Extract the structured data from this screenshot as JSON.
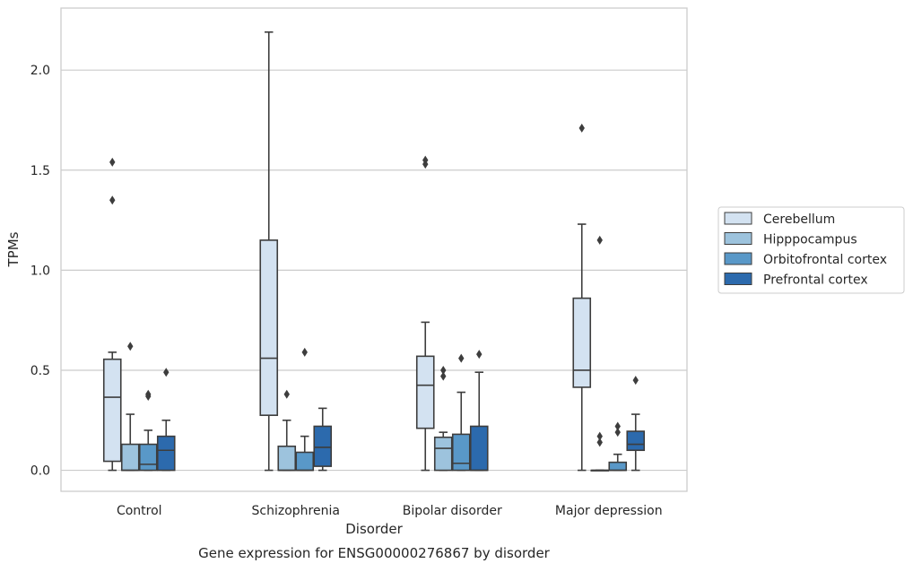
{
  "chart_data": {
    "type": "box",
    "title": "Gene expression for ENSG00000276867 by disorder",
    "xlabel": "Disorder",
    "ylabel": "TPMs",
    "ylim": [
      -0.105,
      2.31
    ],
    "yticks": [
      "0.0",
      "0.5",
      "1.0",
      "1.5",
      "2.0"
    ],
    "ytick_values": [
      0.0,
      0.5,
      1.0,
      1.5,
      2.0
    ],
    "grid": "horizontal",
    "legend_placement": "center-right",
    "categories": [
      "Control",
      "Schizophrenia",
      "Bipolar disorder",
      "Major depression"
    ],
    "series": [
      {
        "name": "Cerebellum",
        "color": "#d3e2f1",
        "boxes": [
          {
            "whisker_low": 0.0,
            "q1": 0.045,
            "median": 0.365,
            "q3": 0.555,
            "whisker_high": 0.59,
            "outliers": [
              1.35,
              1.54
            ]
          },
          {
            "whisker_low": 0.0,
            "q1": 0.275,
            "median": 0.56,
            "q3": 1.15,
            "whisker_high": 2.19,
            "outliers": []
          },
          {
            "whisker_low": 0.0,
            "q1": 0.21,
            "median": 0.425,
            "q3": 0.57,
            "whisker_high": 0.74,
            "outliers": [
              1.53,
              1.55
            ]
          },
          {
            "whisker_low": 0.0,
            "q1": 0.415,
            "median": 0.5,
            "q3": 0.86,
            "whisker_high": 1.23,
            "outliers": [
              1.71
            ]
          }
        ]
      },
      {
        "name": "Hipppocampus",
        "color": "#9dc3dd",
        "boxes": [
          {
            "whisker_low": 0.0,
            "q1": 0.0,
            "median": 0.0,
            "q3": 0.13,
            "whisker_high": 0.28,
            "outliers": [
              0.62
            ]
          },
          {
            "whisker_low": 0.0,
            "q1": 0.0,
            "median": 0.0,
            "q3": 0.12,
            "whisker_high": 0.25,
            "outliers": [
              0.38
            ]
          },
          {
            "whisker_low": 0.0,
            "q1": 0.0,
            "median": 0.11,
            "q3": 0.165,
            "whisker_high": 0.19,
            "outliers": [
              0.47,
              0.5
            ]
          },
          {
            "whisker_low": 0.0,
            "q1": 0.0,
            "median": 0.0,
            "q3": 0.0,
            "whisker_high": 0.0,
            "outliers": [
              0.14,
              0.17,
              1.15
            ]
          }
        ]
      },
      {
        "name": "Orbitofrontal cortex",
        "color": "#5998c8",
        "boxes": [
          {
            "whisker_low": 0.0,
            "q1": 0.0,
            "median": 0.03,
            "q3": 0.13,
            "whisker_high": 0.2,
            "outliers": [
              0.37,
              0.38
            ]
          },
          {
            "whisker_low": 0.0,
            "q1": 0.0,
            "median": 0.0,
            "q3": 0.09,
            "whisker_high": 0.17,
            "outliers": [
              0.59
            ]
          },
          {
            "whisker_low": 0.0,
            "q1": 0.0,
            "median": 0.035,
            "q3": 0.18,
            "whisker_high": 0.39,
            "outliers": [
              0.56
            ]
          },
          {
            "whisker_low": 0.0,
            "q1": 0.0,
            "median": 0.0,
            "q3": 0.04,
            "whisker_high": 0.08,
            "outliers": [
              0.19,
              0.22
            ]
          }
        ]
      },
      {
        "name": "Prefrontal cortex",
        "color": "#2c6aad",
        "boxes": [
          {
            "whisker_low": 0.0,
            "q1": 0.0,
            "median": 0.1,
            "q3": 0.17,
            "whisker_high": 0.25,
            "outliers": [
              0.49
            ]
          },
          {
            "whisker_low": 0.0,
            "q1": 0.02,
            "median": 0.115,
            "q3": 0.22,
            "whisker_high": 0.31,
            "outliers": []
          },
          {
            "whisker_low": 0.0,
            "q1": 0.0,
            "median": 0.0,
            "q3": 0.22,
            "whisker_high": 0.49,
            "outliers": [
              0.58
            ]
          },
          {
            "whisker_low": 0.0,
            "q1": 0.1,
            "median": 0.13,
            "q3": 0.195,
            "whisker_high": 0.28,
            "outliers": [
              0.45
            ]
          }
        ]
      }
    ]
  }
}
